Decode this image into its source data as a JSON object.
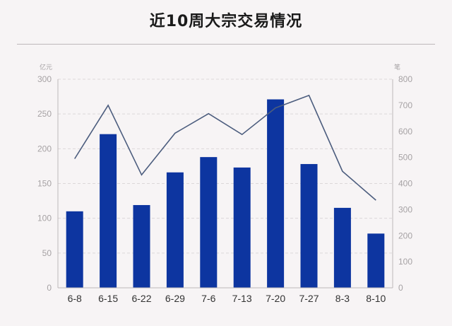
{
  "chart_data": {
    "type": "bar+line",
    "title": "近10周大宗交易情况",
    "categories": [
      "6-8",
      "6-15",
      "6-22",
      "6-29",
      "7-6",
      "7-13",
      "7-20",
      "7-27",
      "8-3",
      "8-10"
    ],
    "series": [
      {
        "type": "bar",
        "unit": "亿元",
        "axis": "left",
        "values": [
          110,
          221,
          119,
          166,
          188,
          173,
          271,
          178,
          115,
          78
        ]
      },
      {
        "type": "line",
        "unit": "笔",
        "axis": "right",
        "values": [
          495,
          700,
          433,
          593,
          668,
          588,
          690,
          738,
          447,
          336
        ]
      }
    ],
    "y_left": {
      "unit_label": "亿元",
      "min": 0,
      "max": 300,
      "ticks": [
        0,
        50,
        100,
        150,
        200,
        250,
        300
      ]
    },
    "y_right": {
      "unit_label": "笔",
      "min": 0,
      "max": 800,
      "ticks": [
        0,
        100,
        200,
        300,
        400,
        500,
        600,
        700,
        800
      ]
    },
    "grid": true,
    "legend": "none",
    "colors": {
      "bar": "#0d35a0",
      "line": "#4c5d7e",
      "tick": "#a6a2a4",
      "category": "#333333",
      "grid": "#dcd7d9",
      "axis": "#bcb7b9"
    }
  }
}
